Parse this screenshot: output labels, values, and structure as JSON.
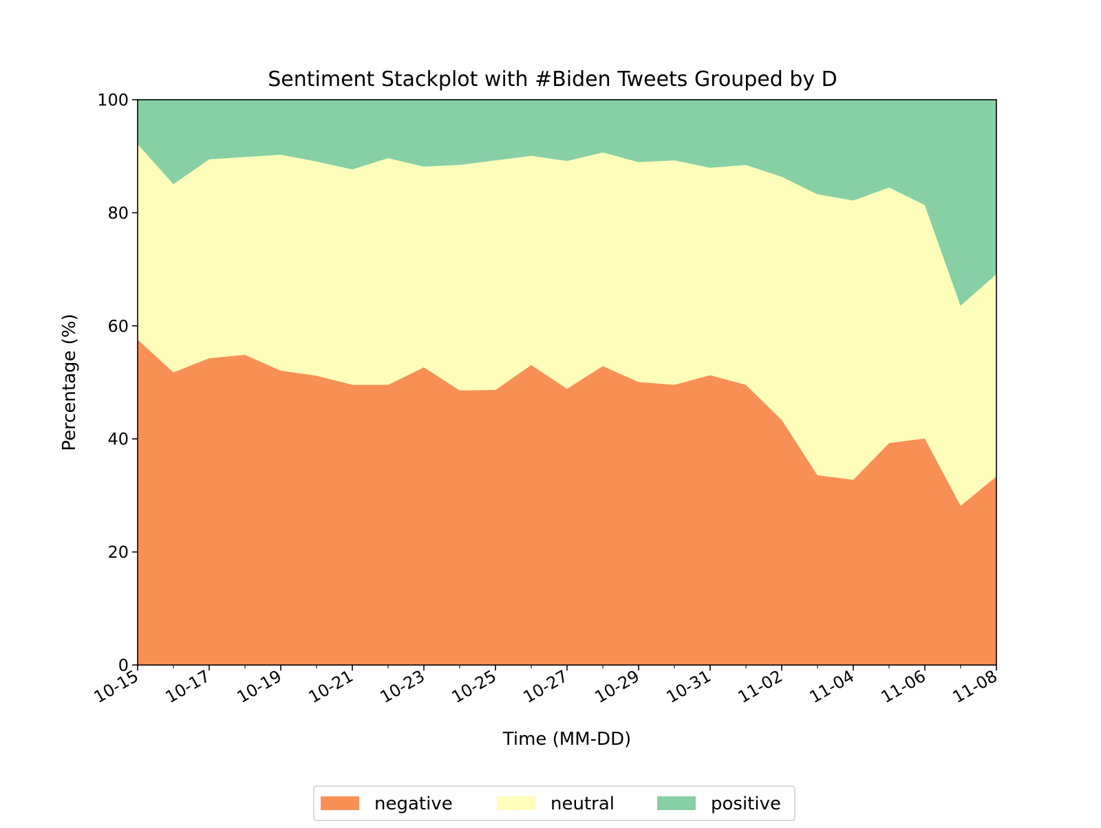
{
  "chart_data": {
    "type": "area",
    "stacked": true,
    "title": "Sentiment Stackplot with #Biden Tweets Grouped by D",
    "xlabel": "Time (MM-DD)",
    "ylabel": "Percentage (%)",
    "ylim": [
      0,
      100
    ],
    "yticks": [
      0,
      20,
      40,
      60,
      80,
      100
    ],
    "x": [
      "10-15",
      "10-16",
      "10-17",
      "10-18",
      "10-19",
      "10-20",
      "10-21",
      "10-22",
      "10-23",
      "10-24",
      "10-25",
      "10-26",
      "10-27",
      "10-28",
      "10-29",
      "10-30",
      "10-31",
      "11-01",
      "11-02",
      "11-03",
      "11-04",
      "11-05",
      "11-06",
      "11-07",
      "11-08"
    ],
    "xticks": [
      "10-15",
      "10-17",
      "10-19",
      "10-21",
      "10-23",
      "10-25",
      "10-27",
      "10-29",
      "10-31",
      "11-02",
      "11-04",
      "11-06",
      "11-08"
    ],
    "grid": false,
    "legend_position": "bottom-center",
    "series": [
      {
        "name": "negative",
        "color": "#f88f55",
        "values": [
          57.6,
          51.8,
          54.3,
          54.9,
          52.1,
          51.2,
          49.6,
          49.6,
          52.7,
          48.6,
          48.7,
          53.1,
          48.9,
          52.9,
          50.1,
          49.6,
          51.3,
          49.6,
          43.4,
          33.6,
          32.8,
          39.3,
          40.1,
          28.2,
          33.4
        ]
      },
      {
        "name": "neutral",
        "color": "#fefeba",
        "values": [
          34.6,
          33.3,
          35.2,
          35.0,
          38.2,
          37.9,
          38.1,
          40.1,
          35.5,
          39.9,
          40.6,
          37.0,
          40.3,
          37.8,
          38.9,
          39.7,
          36.7,
          38.9,
          43.0,
          49.7,
          49.4,
          45.2,
          41.3,
          35.4,
          35.8
        ]
      },
      {
        "name": "positive",
        "color": "#87cfa5",
        "values": [
          7.8,
          14.9,
          10.5,
          10.1,
          9.7,
          10.9,
          12.3,
          10.3,
          11.8,
          11.5,
          10.7,
          9.9,
          10.8,
          9.3,
          11.0,
          10.7,
          12.0,
          11.5,
          13.6,
          16.7,
          17.8,
          15.5,
          18.6,
          36.4,
          30.8
        ]
      }
    ]
  }
}
